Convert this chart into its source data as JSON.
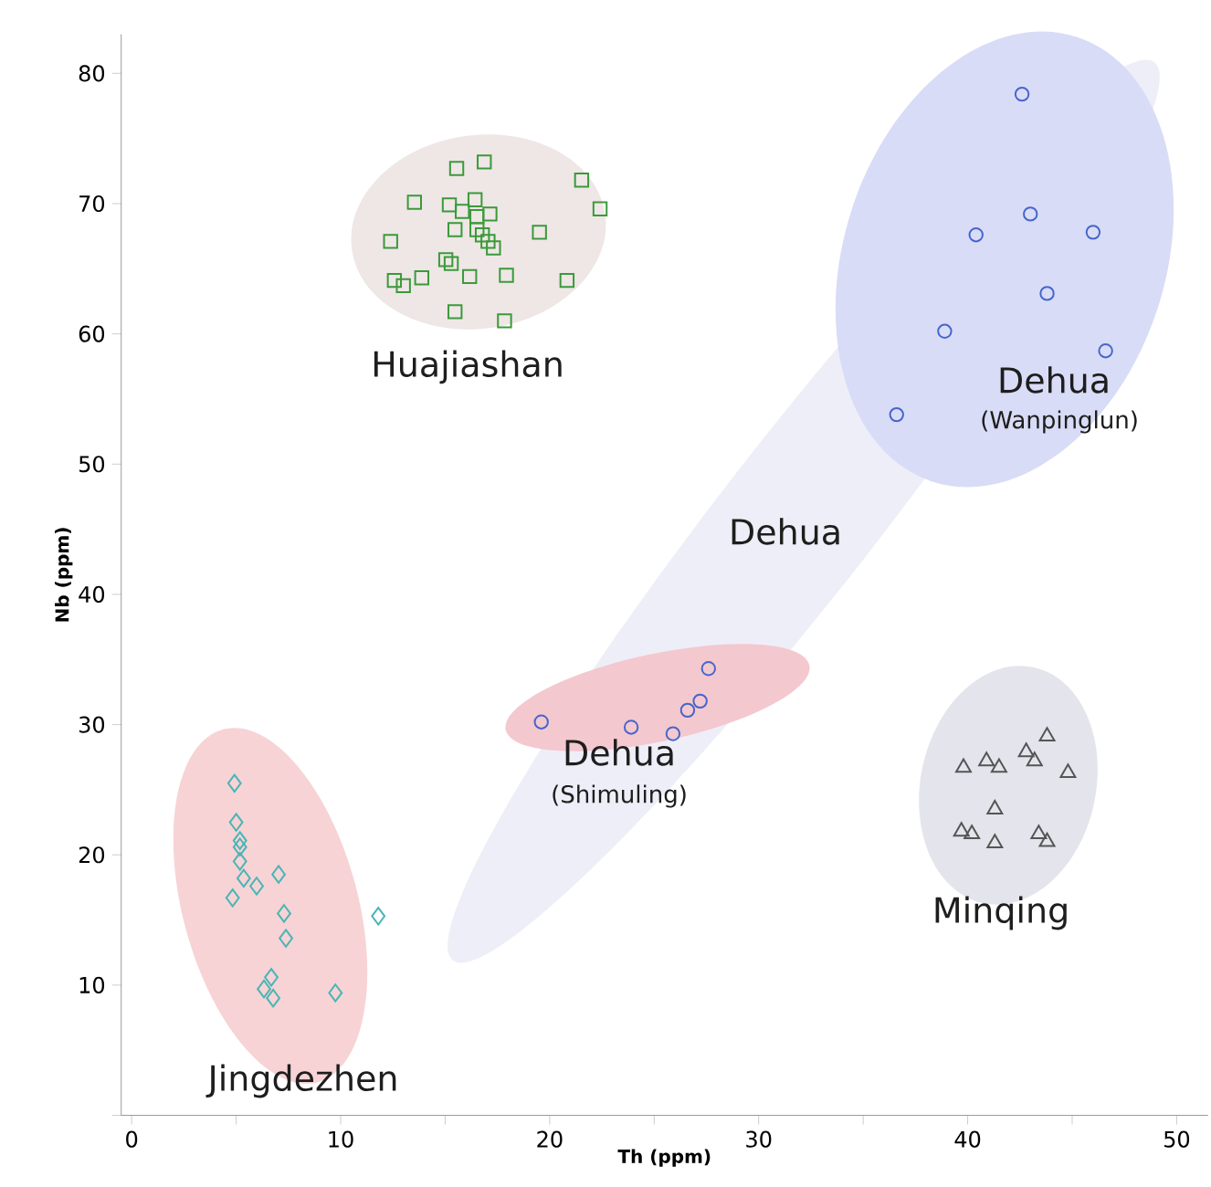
{
  "chart_data": {
    "type": "scatter",
    "xlabel": "Th (ppm)",
    "ylabel": "Nb (ppm)",
    "xlim": [
      -0.5,
      51.5
    ],
    "ylim": [
      0,
      83
    ],
    "xticks": [
      0,
      {
        "value": 5,
        "label": null
      },
      10,
      {
        "value": 15,
        "label": null
      },
      20,
      {
        "value": 25,
        "label": null
      },
      30,
      {
        "value": 35,
        "label": null
      },
      40,
      {
        "value": 45,
        "label": null
      },
      50
    ],
    "yticks": [
      {
        "value": 0,
        "label": null
      },
      10,
      20,
      30,
      40,
      50,
      60,
      70,
      80
    ],
    "series": [
      {
        "color": "#3a9a3a",
        "marker": "square",
        "x": [
          15.55,
          16.87,
          21.53,
          22.41,
          13.53,
          15.2,
          15.82,
          16.43,
          17.14,
          16.52,
          15.47,
          16.52,
          16.78,
          17.05,
          17.31,
          19.51,
          12.39,
          15.03,
          15.29,
          13.88,
          12.57,
          13.0,
          16.17,
          17.93,
          20.83,
          15.47,
          17.84
        ],
        "values": [
          72.7,
          73.2,
          71.8,
          69.6,
          70.1,
          69.9,
          69.4,
          70.3,
          69.2,
          69.0,
          68.0,
          68.0,
          67.6,
          67.1,
          66.6,
          67.8,
          67.1,
          65.7,
          65.4,
          64.3,
          64.1,
          63.7,
          64.4,
          64.5,
          64.1,
          61.7,
          61.0
        ]
      },
      {
        "color": "#4466cc",
        "marker": "circle",
        "x": [
          42.6,
          43.0,
          40.4,
          46.0,
          43.8,
          38.9,
          46.6,
          36.6
        ],
        "values": [
          78.4,
          69.2,
          67.6,
          67.8,
          63.1,
          60.2,
          58.7,
          53.8
        ]
      },
      {
        "color": "#4466cc",
        "marker": "circle",
        "x": [
          19.6,
          23.9,
          25.9,
          26.6,
          27.2,
          27.6
        ],
        "values": [
          30.2,
          29.8,
          29.3,
          31.1,
          31.8,
          34.3
        ]
      },
      {
        "color": "#555555",
        "marker": "triangle",
        "x": [
          39.8,
          40.9,
          41.5,
          42.8,
          43.8,
          43.2,
          44.8,
          41.3,
          39.7,
          40.2,
          41.3,
          43.4,
          43.8
        ],
        "values": [
          26.7,
          27.2,
          26.7,
          27.9,
          29.1,
          27.2,
          26.3,
          23.5,
          21.8,
          21.6,
          20.9,
          21.6,
          21.0
        ]
      },
      {
        "color": "#4ab5b5",
        "marker": "diamond",
        "x": [
          4.92,
          5.0,
          5.18,
          5.18,
          5.18,
          5.36,
          5.98,
          7.03,
          4.83,
          7.29,
          7.38,
          6.68,
          6.33,
          6.77,
          9.75,
          11.8
        ],
        "values": [
          25.5,
          22.5,
          21.1,
          20.6,
          19.5,
          18.2,
          17.6,
          18.5,
          16.7,
          15.5,
          13.6,
          10.6,
          9.7,
          9.0,
          9.4,
          15.3
        ]
      }
    ],
    "annotations": [
      "Huajiashan",
      "Dehua",
      "(Wanpinglun)",
      "Dehua",
      "Dehua",
      "(Shimuling)",
      "Minqing",
      "Jingdezhen"
    ]
  }
}
